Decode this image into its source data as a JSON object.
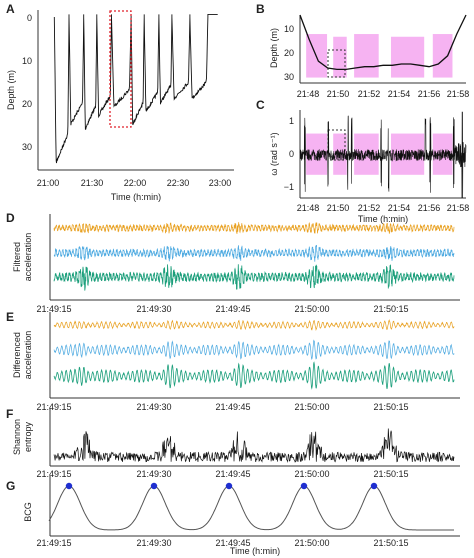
{
  "figure": {
    "panels": {
      "A": {
        "letter": "A",
        "ylabel": "Depth (m)",
        "xlabel": "Time (h:min)",
        "xticks": [
          "21:00",
          "21:30",
          "22:00",
          "22:30",
          "23:00"
        ],
        "yticks": [
          "0",
          "10",
          "20",
          "30"
        ]
      },
      "B": {
        "letter": "B",
        "ylabel": "Depth (m)",
        "xticks": [
          "21:48",
          "21:50",
          "21:52",
          "21:54",
          "21:56",
          "21:58"
        ],
        "yticks": [
          "10",
          "20",
          "30"
        ]
      },
      "C": {
        "letter": "C",
        "ylabel": "ω (rad s⁻¹)",
        "xlabel": "Time (h:min)",
        "xticks": [
          "21:48",
          "21:50",
          "21:52",
          "21:54",
          "21:56",
          "21:58"
        ],
        "yticks": [
          "1",
          "0",
          "−1"
        ]
      },
      "D": {
        "letter": "D",
        "ylabel": [
          "Filtered",
          "acceleration"
        ]
      },
      "E": {
        "letter": "E",
        "ylabel": [
          "Differenced",
          "acceleration"
        ]
      },
      "F": {
        "letter": "F",
        "ylabel": [
          "Shannon",
          "entropy"
        ]
      },
      "G": {
        "letter": "G",
        "ylabel": [
          "BCG"
        ],
        "xlabel": "Time (h:min)"
      }
    },
    "bottom_xticks": [
      "21:49:15",
      "21:49:30",
      "21:49:45",
      "21:50:00",
      "21:50:15"
    ]
  },
  "colors": {
    "line": "#111111",
    "highlight": "#f5a6f0",
    "box": "#e0202a",
    "axis_x": "#e8a020",
    "axis_y": "#4aa8e0",
    "axis_z": "#1a9e7a",
    "bcg_peak": "#1f2fd0"
  },
  "chart_data": [
    {
      "type": "line",
      "panel": "A",
      "xlabel": "Time (h:min)",
      "ylabel": "Depth (m)",
      "xlim": [
        0,
        120
      ],
      "ylim": [
        0,
        35
      ],
      "y_inverted": true,
      "x_ticks": [
        "21:00",
        "21:30",
        "22:00",
        "22:30",
        "23:00"
      ],
      "dive_max_depths_m": [
        34,
        25,
        26,
        23,
        21,
        25,
        22,
        20,
        19,
        19
      ],
      "dive_surface_minutes": [
        10,
        19,
        28,
        36,
        45,
        57,
        65,
        74,
        82,
        93,
        104
      ],
      "highlight_box_x": [
        44,
        53
      ],
      "highlight_box_y": [
        0,
        26
      ]
    },
    {
      "type": "line",
      "panel": "B",
      "ylabel": "Depth (m)",
      "xlim": [
        21.78,
        21.99
      ],
      "ylim": [
        5,
        30
      ],
      "y_inverted": true,
      "x_ticks": [
        "21:48",
        "21:50",
        "21:52",
        "21:54",
        "21:56",
        "21:58"
      ],
      "depth_profile_m": [
        5,
        14,
        22,
        24.5,
        25,
        25,
        24.5,
        24,
        24,
        23.5,
        23.5,
        23,
        23,
        23.5,
        24,
        23,
        20,
        12,
        5
      ],
      "highlight_segments_min": [
        [
          0.5,
          2.2
        ],
        [
          2.7,
          3.8
        ],
        [
          4.4,
          6.4
        ],
        [
          7.4,
          10.1
        ],
        [
          10.8,
          12.4
        ]
      ],
      "dashed_box_min": [
        1.5,
        3.0
      ]
    },
    {
      "type": "line",
      "panel": "C",
      "ylabel": "ω (rad s⁻¹)",
      "xlabel": "Time (h:min)",
      "ylim": [
        -1.3,
        1.3
      ],
      "y_ticks": [
        1,
        0,
        -1
      ],
      "x_ticks": [
        "21:48",
        "21:50",
        "21:52",
        "21:54",
        "21:56",
        "21:58"
      ]
    },
    {
      "type": "line",
      "panel": "D",
      "ylabel": "Filtered acceleration",
      "series": [
        {
          "color": "#e8a020"
        },
        {
          "color": "#4aa8e0"
        },
        {
          "color": "#1a9e7a"
        }
      ],
      "x_ticks": [
        "21:49:15",
        "21:49:30",
        "21:49:45",
        "21:50:00",
        "21:50:15"
      ]
    },
    {
      "type": "line",
      "panel": "E",
      "ylabel": "Differenced acceleration",
      "series": [
        {
          "color": "#e8a020"
        },
        {
          "color": "#4aa8e0"
        },
        {
          "color": "#1a9e7a"
        }
      ],
      "x_ticks": [
        "21:49:15",
        "21:49:30",
        "21:49:45",
        "21:50:00",
        "21:50:15"
      ]
    },
    {
      "type": "line",
      "panel": "F",
      "ylabel": "Shannon entropy",
      "burst_times_s": [
        6,
        23,
        37,
        52,
        67
      ],
      "x_ticks": [
        "21:49:15",
        "21:49:30",
        "21:49:45",
        "21:50:00",
        "21:50:15"
      ]
    },
    {
      "type": "line",
      "panel": "G",
      "ylabel": "BCG",
      "xlabel": "Time (h:min)",
      "peak_times_s": [
        3,
        20,
        35,
        50,
        64
      ],
      "x_ticks": [
        "21:49:15",
        "21:49:30",
        "21:49:45",
        "21:50:00",
        "21:50:15"
      ]
    }
  ]
}
